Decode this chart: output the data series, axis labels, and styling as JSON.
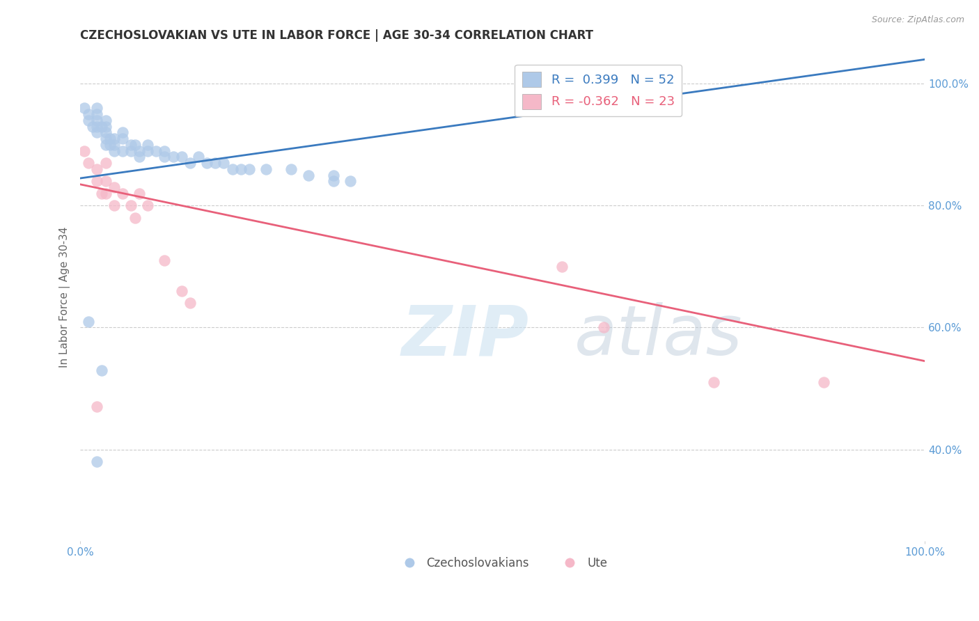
{
  "title": "CZECHOSLOVAKIAN VS UTE IN LABOR FORCE | AGE 30-34 CORRELATION CHART",
  "source_text": "Source: ZipAtlas.com",
  "ylabel": "In Labor Force | Age 30-34",
  "xlim": [
    0.0,
    1.0
  ],
  "ylim": [
    0.25,
    1.05
  ],
  "ytick_positions": [
    0.4,
    0.6,
    0.8,
    1.0
  ],
  "blue_color": "#aec9e8",
  "pink_color": "#f5b8c8",
  "blue_line_color": "#3a7abf",
  "pink_line_color": "#e8607a",
  "legend_blue_label": "R =  0.399   N = 52",
  "legend_pink_label": "R = -0.362   N = 23",
  "czechs_x": [
    0.005,
    0.01,
    0.01,
    0.015,
    0.02,
    0.02,
    0.02,
    0.02,
    0.02,
    0.025,
    0.03,
    0.03,
    0.03,
    0.03,
    0.03,
    0.035,
    0.035,
    0.04,
    0.04,
    0.04,
    0.05,
    0.05,
    0.05,
    0.06,
    0.06,
    0.065,
    0.07,
    0.07,
    0.08,
    0.08,
    0.09,
    0.1,
    0.1,
    0.11,
    0.12,
    0.13,
    0.14,
    0.15,
    0.16,
    0.17,
    0.18,
    0.19,
    0.2,
    0.22,
    0.25,
    0.27,
    0.3,
    0.3,
    0.32,
    0.01,
    0.02,
    0.025
  ],
  "czechs_y": [
    0.96,
    0.95,
    0.94,
    0.93,
    0.96,
    0.95,
    0.94,
    0.93,
    0.92,
    0.93,
    0.94,
    0.93,
    0.92,
    0.91,
    0.9,
    0.91,
    0.9,
    0.91,
    0.9,
    0.89,
    0.92,
    0.91,
    0.89,
    0.9,
    0.89,
    0.9,
    0.89,
    0.88,
    0.9,
    0.89,
    0.89,
    0.89,
    0.88,
    0.88,
    0.88,
    0.87,
    0.88,
    0.87,
    0.87,
    0.87,
    0.86,
    0.86,
    0.86,
    0.86,
    0.86,
    0.85,
    0.84,
    0.85,
    0.84,
    0.61,
    0.38,
    0.53
  ],
  "ute_x": [
    0.005,
    0.01,
    0.02,
    0.02,
    0.025,
    0.03,
    0.03,
    0.03,
    0.04,
    0.04,
    0.05,
    0.06,
    0.065,
    0.07,
    0.08,
    0.1,
    0.12,
    0.13,
    0.57,
    0.62,
    0.75,
    0.88,
    0.02
  ],
  "ute_y": [
    0.89,
    0.87,
    0.86,
    0.84,
    0.82,
    0.87,
    0.84,
    0.82,
    0.83,
    0.8,
    0.82,
    0.8,
    0.78,
    0.82,
    0.8,
    0.71,
    0.66,
    0.64,
    0.7,
    0.6,
    0.51,
    0.51,
    0.47
  ],
  "blue_trend": [
    0.0,
    1.0,
    0.845,
    1.04
  ],
  "pink_trend": [
    0.0,
    1.0,
    0.835,
    0.545
  ],
  "grid_color": "#cccccc",
  "background_color": "#ffffff",
  "title_color": "#333333",
  "axis_label_color": "#666666",
  "tick_color_blue": "#5b9bd5"
}
